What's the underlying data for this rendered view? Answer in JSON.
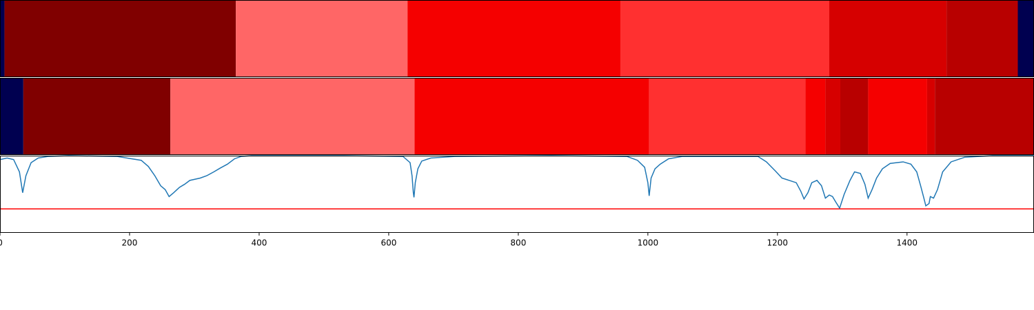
{
  "chart_data": [
    {
      "type": "segments",
      "xlim": [
        0,
        1596
      ],
      "starts": [
        0,
        7,
        364,
        629,
        958,
        1280,
        1461,
        1571
      ],
      "ends": [
        7,
        364,
        629,
        958,
        1280,
        1461,
        1571,
        1596
      ],
      "colors": [
        "#000050",
        "#800000",
        "#ff6666",
        "#f50000",
        "#ff3030",
        "#d60000",
        "#b80000",
        "#000050"
      ]
    },
    {
      "type": "segments",
      "xlim": [
        0,
        1596
      ],
      "starts": [
        0,
        36,
        263,
        640,
        1002,
        1243,
        1274,
        1297,
        1340,
        1431,
        1443
      ],
      "ends": [
        36,
        263,
        640,
        1002,
        1243,
        1274,
        1297,
        1340,
        1431,
        1443,
        1596
      ],
      "colors": [
        "#000050",
        "#800000",
        "#ff6666",
        "#f50000",
        "#ff3030",
        "#f50000",
        "#d60000",
        "#b80000",
        "#f50000",
        "#d60000",
        "#b80000"
      ]
    },
    {
      "type": "line",
      "xlim": [
        0,
        1596
      ],
      "ylim": [
        0,
        1
      ],
      "xticks": [
        0,
        200,
        400,
        600,
        800,
        1000,
        1200,
        1400
      ],
      "color": "#1f77b4",
      "hline": 0.31,
      "hline_color": "#ff0000",
      "x": [
        0,
        11,
        21,
        30,
        35,
        40,
        48,
        59,
        74,
        106,
        181,
        218,
        229,
        239,
        248,
        255,
        261,
        268,
        277,
        285,
        293,
        309,
        319,
        330,
        340,
        351,
        362,
        372,
        388,
        532,
        622,
        633,
        636,
        638,
        639,
        641,
        645,
        651,
        665,
        702,
        851,
        968,
        984,
        995,
        1000,
        1002,
        1005,
        1011,
        1019,
        1032,
        1053,
        1170,
        1183,
        1197,
        1207,
        1218,
        1229,
        1236,
        1241,
        1247,
        1253,
        1261,
        1268,
        1274,
        1280,
        1285,
        1290,
        1296,
        1303,
        1312,
        1319,
        1328,
        1335,
        1340,
        1346,
        1353,
        1362,
        1374,
        1394,
        1406,
        1415,
        1421,
        1426,
        1429,
        1434,
        1436,
        1441,
        1447,
        1455,
        1468,
        1489,
        1511,
        1532,
        1596
      ],
      "values": [
        0.95,
        0.97,
        0.95,
        0.79,
        0.52,
        0.74,
        0.91,
        0.97,
        0.99,
        1.0,
        0.99,
        0.94,
        0.86,
        0.74,
        0.61,
        0.56,
        0.47,
        0.52,
        0.59,
        0.63,
        0.68,
        0.71,
        0.74,
        0.79,
        0.84,
        0.89,
        0.96,
        0.99,
        1.0,
        1.0,
        0.99,
        0.91,
        0.74,
        0.52,
        0.46,
        0.65,
        0.83,
        0.93,
        0.97,
        0.99,
        1.0,
        0.99,
        0.94,
        0.85,
        0.65,
        0.48,
        0.71,
        0.83,
        0.89,
        0.96,
        0.99,
        0.99,
        0.92,
        0.8,
        0.71,
        0.68,
        0.65,
        0.54,
        0.44,
        0.52,
        0.65,
        0.68,
        0.61,
        0.45,
        0.49,
        0.47,
        0.4,
        0.32,
        0.5,
        0.68,
        0.79,
        0.77,
        0.63,
        0.45,
        0.56,
        0.71,
        0.83,
        0.9,
        0.92,
        0.89,
        0.79,
        0.61,
        0.45,
        0.35,
        0.38,
        0.47,
        0.45,
        0.56,
        0.79,
        0.92,
        0.98,
        0.99,
        1.0,
        1.0
      ]
    }
  ]
}
